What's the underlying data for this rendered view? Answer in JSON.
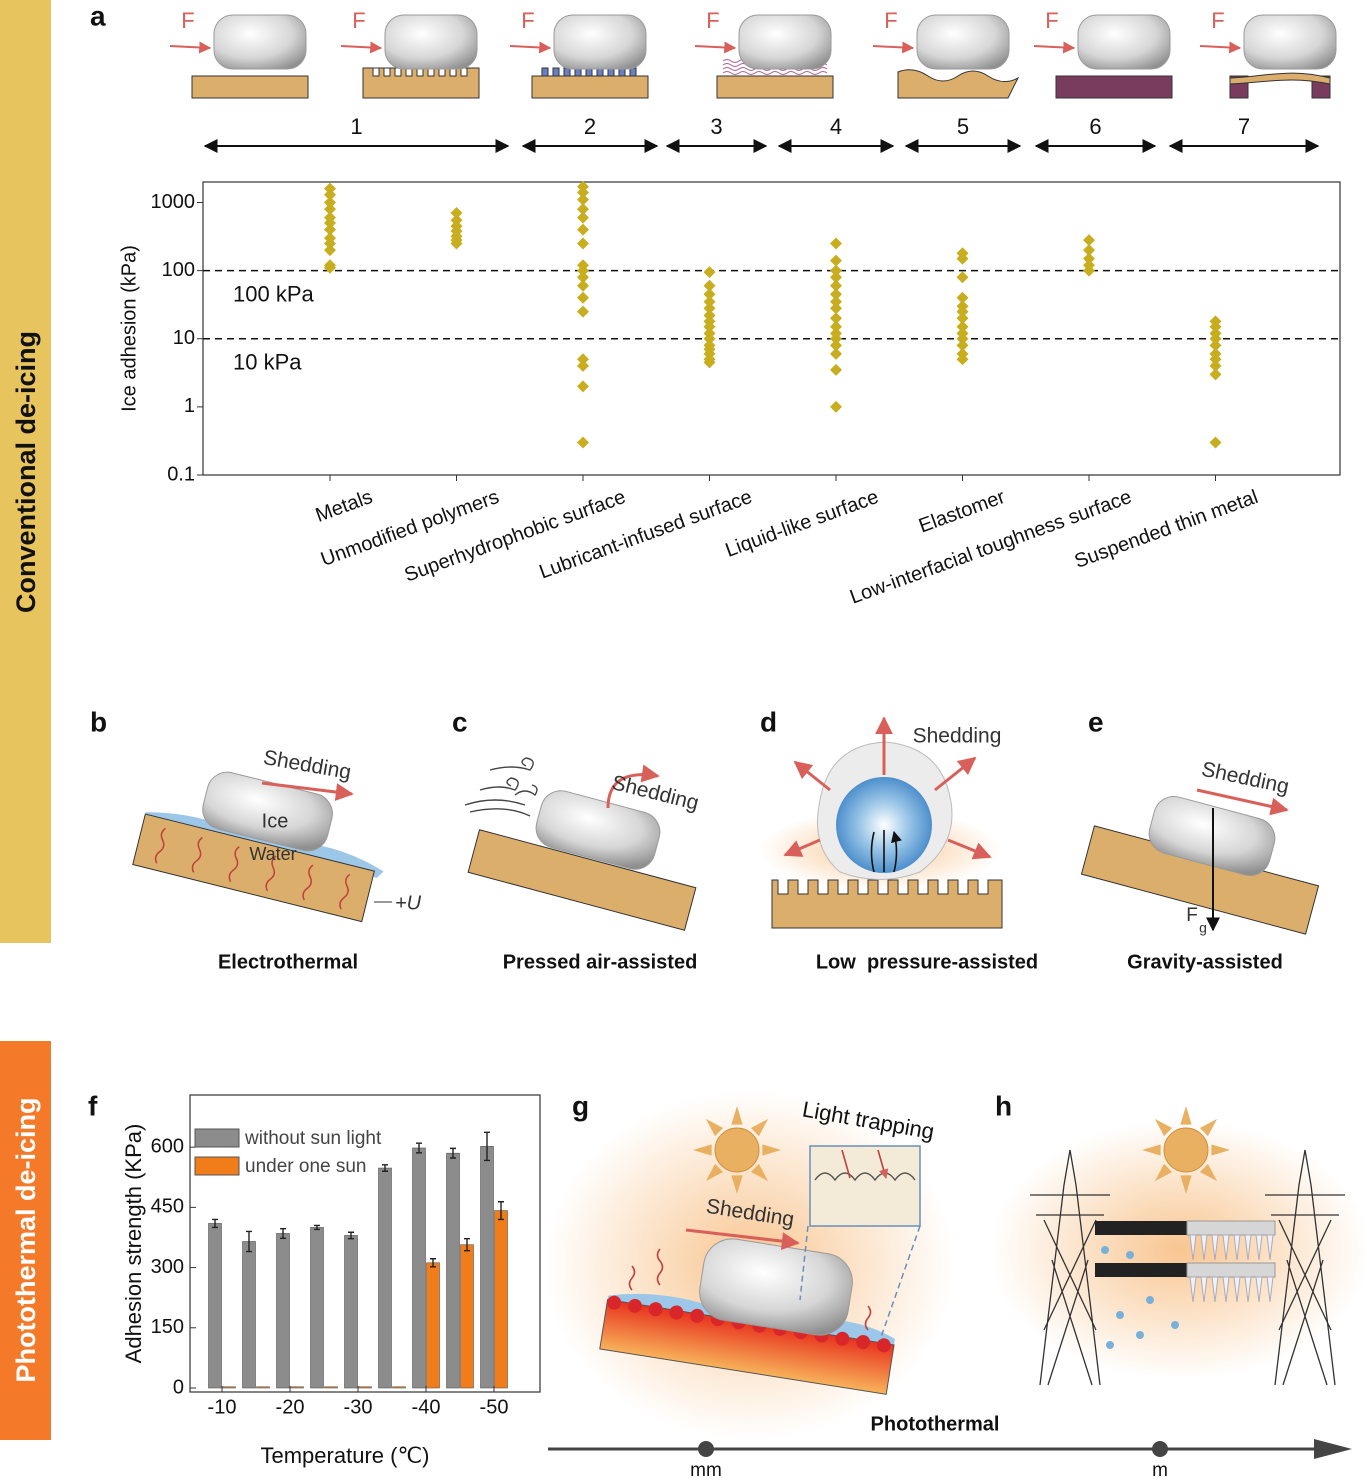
{
  "side_labels": {
    "conventional": "Conventional de-icing",
    "photothermal": "Photothermal de-icing"
  },
  "panel_labels": [
    "a",
    "b",
    "c",
    "d",
    "e",
    "f",
    "g",
    "h"
  ],
  "panel_a": {
    "force_label": "F",
    "groups": [
      1,
      2,
      3,
      4,
      5,
      6,
      7
    ]
  },
  "chart_data": [
    {
      "type": "strip",
      "y_label": "Ice adhesion (kPa)",
      "categories": [
        "Metals",
        "Unmodified polymers",
        "Superhydrophobic surface",
        "Lubricant-infused surface",
        "Liquid-like surface",
        "Elastomer",
        "Low-interfacial toughness surface",
        "Suspended thin metal"
      ],
      "values": [
        [
          1600,
          1300,
          1000,
          800,
          600,
          500,
          400,
          300,
          250,
          200,
          120,
          110
        ],
        [
          700,
          550,
          450,
          380,
          320,
          280,
          250
        ],
        [
          1700,
          1400,
          1100,
          800,
          600,
          400,
          250,
          120,
          100,
          80,
          60,
          40,
          25,
          5,
          4,
          2,
          0.3
        ],
        [
          95,
          60,
          45,
          35,
          28,
          22,
          18,
          15,
          12,
          10,
          8,
          7,
          6,
          5,
          4.5
        ],
        [
          250,
          140,
          100,
          80,
          60,
          45,
          35,
          28,
          20,
          15,
          12,
          10,
          8,
          6,
          3.5,
          1
        ],
        [
          180,
          150,
          80,
          40,
          30,
          25,
          20,
          15,
          12,
          10,
          8,
          6,
          5
        ],
        [
          280,
          200,
          150,
          120,
          100
        ],
        [
          18,
          15,
          12,
          10,
          8,
          6,
          5,
          4,
          3,
          0.3
        ]
      ],
      "color": "#c8ae1e",
      "log_y": true,
      "ylim": [
        0.1,
        2000
      ],
      "yticks": [
        0.1,
        1,
        10,
        100,
        1000
      ],
      "reference_lines": [
        {
          "value": 100,
          "label": "100 kPa"
        },
        {
          "value": 10,
          "label": "10 kPa"
        }
      ]
    },
    {
      "type": "bar",
      "x_label": "Temperature (℃)",
      "y_label": "Adhesion strength (KPa)",
      "categories": [
        "-10",
        null,
        "-20",
        null,
        "-30",
        null,
        "-40",
        null,
        "-50"
      ],
      "series": [
        {
          "name": "without sun light",
          "color": "#8c8c8c",
          "values": [
            410,
            365,
            385,
            400,
            380,
            548,
            598,
            585,
            602
          ],
          "errors": [
            10,
            25,
            12,
            5,
            8,
            8,
            12,
            12,
            35
          ]
        },
        {
          "name": "under one sun",
          "color": "#f07d1a",
          "values": [
            3,
            3,
            3,
            3,
            3,
            3,
            312,
            357,
            442
          ],
          "errors": [
            0,
            0,
            0,
            0,
            0,
            0,
            10,
            15,
            22
          ]
        }
      ],
      "ylim": [
        -10,
        730
      ],
      "yticks": [
        0,
        150,
        300,
        450,
        600
      ],
      "legend": "upper-left"
    }
  ],
  "panel_b": {
    "shedding": "Shedding",
    "ice": "Ice",
    "water": "Water",
    "voltage": "+U",
    "caption": "Electrothermal"
  },
  "panel_c": {
    "shedding": "Shedding",
    "caption": "Pressed air-assisted"
  },
  "panel_d": {
    "shedding": "Shedding",
    "caption": "Low  pressure-assisted"
  },
  "panel_e": {
    "shedding": "Shedding",
    "force": "F",
    "force_subscript": "g",
    "caption": "Gravity-assisted"
  },
  "panel_g": {
    "inset": "Light trapping",
    "shedding": "Shedding"
  },
  "scale_bar": {
    "title": "Photothermal",
    "ticks": [
      "mm",
      "m"
    ]
  }
}
